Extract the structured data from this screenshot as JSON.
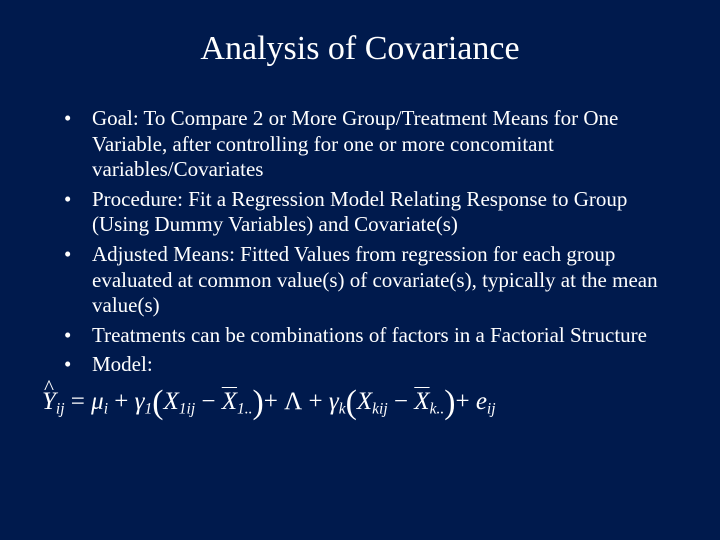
{
  "background_color": "#001a4d",
  "text_color": "#ffffff",
  "title": "Analysis of Covariance",
  "title_fontsize": 34,
  "body_fontsize": 21,
  "bullets": {
    "b0": "Goal: To Compare 2 or More Group/Treatment Means for One Variable, after controlling for one or more concomitant variables/Covariates",
    "b1": "Procedure: Fit a Regression Model Relating Response to Group (Using Dummy Variables) and Covariate(s)",
    "b2": "Adjusted Means: Fitted Values from regression for each group evaluated at common value(s) of covariate(s), typically at the mean value(s)",
    "b3": "Treatments can be combinations of factors in a Factorial Structure",
    "b4": "Model:"
  },
  "equation": {
    "latex": "\\hat{Y}_{ij} = \\mu_i + \\gamma_1 (X_{1ij} - \\bar{X}_{1..}) + \\Lambda + \\gamma_k (X_{kij} - \\bar{X}_{k..}) + e_{ij}",
    "font_family": "Times New Roman",
    "font_style": "italic",
    "fontsize": 25
  }
}
